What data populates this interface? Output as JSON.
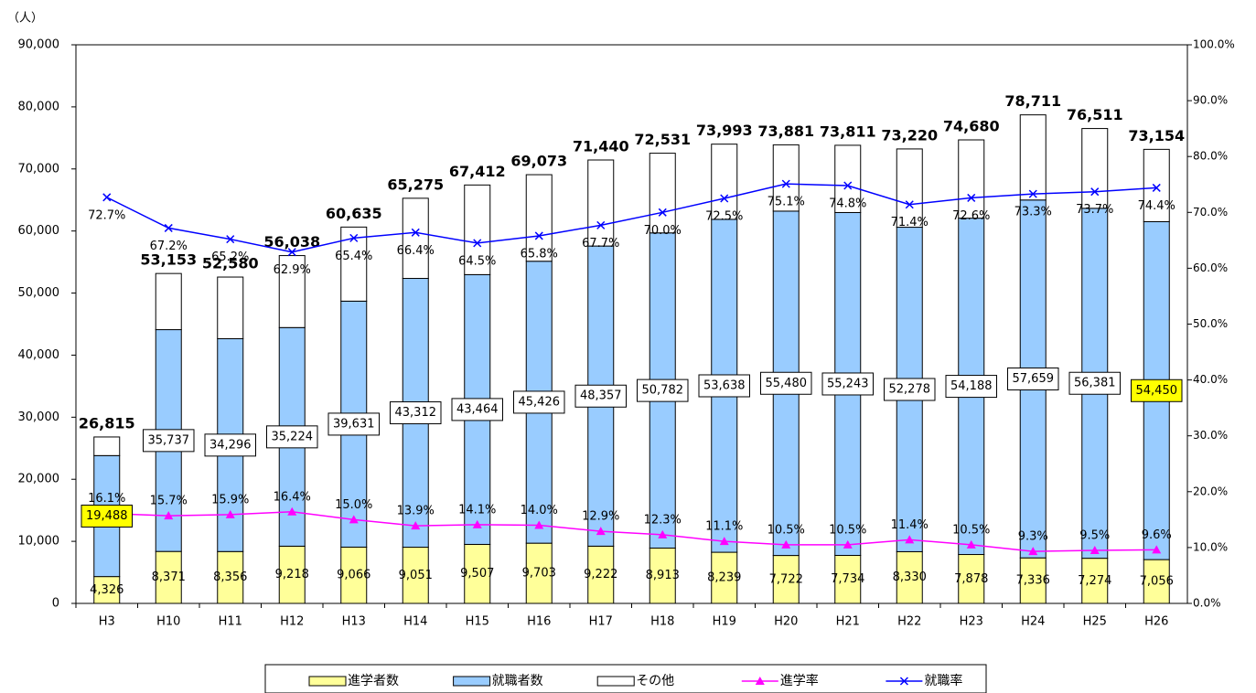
{
  "chart_data": {
    "type": "combo",
    "y_unit_label": "（人）",
    "categories": [
      "H3",
      "H10",
      "H11",
      "H12",
      "H13",
      "H14",
      "H15",
      "H16",
      "H17",
      "H18",
      "H19",
      "H20",
      "H21",
      "H22",
      "H23",
      "H24",
      "H25",
      "H26"
    ],
    "series": [
      {
        "name": "進学者数",
        "type": "bar",
        "color": "#ffff99",
        "values": [
          4326,
          8371,
          8356,
          9218,
          9066,
          9051,
          9507,
          9703,
          9222,
          8913,
          8239,
          7722,
          7734,
          8330,
          7878,
          7336,
          7274,
          7056
        ],
        "value_labels": [
          "4,326",
          "8,371",
          "8,356",
          "9,218",
          "9,066",
          "9,051",
          "9,507",
          "9,703",
          "9,222",
          "8,913",
          "8,239",
          "7,722",
          "7,734",
          "8,330",
          "7,878",
          "7,336",
          "7,274",
          "7,056"
        ]
      },
      {
        "name": "就職者数",
        "type": "bar",
        "color": "#99ccff",
        "values": [
          19488,
          35737,
          34296,
          35224,
          39631,
          43312,
          43464,
          45426,
          48357,
          50782,
          53638,
          55480,
          55243,
          52278,
          54188,
          57659,
          56381,
          54450
        ],
        "value_labels": [
          "19,488",
          "35,737",
          "34,296",
          "35,224",
          "39,631",
          "43,312",
          "43,464",
          "45,426",
          "48,357",
          "50,782",
          "53,638",
          "55,480",
          "55,243",
          "52,278",
          "54,188",
          "57,659",
          "56,381",
          "54,450"
        ]
      },
      {
        "name": "その他",
        "type": "bar",
        "color": "#ffffff",
        "values": [
          3001,
          9045,
          9928,
          11596,
          11938,
          12912,
          14441,
          13944,
          13861,
          12836,
          12116,
          10679,
          10834,
          12612,
          12614,
          13716,
          12856,
          11648
        ]
      },
      {
        "name": "進学率",
        "type": "line",
        "axis": "y2",
        "color": "#ff00ff",
        "marker": "triangle",
        "values": [
          16.1,
          15.7,
          15.9,
          16.4,
          15.0,
          13.9,
          14.1,
          14.0,
          12.9,
          12.3,
          11.1,
          10.5,
          10.5,
          11.4,
          10.5,
          9.3,
          9.5,
          9.6
        ],
        "value_labels": [
          "16.1%",
          "15.7%",
          "15.9%",
          "16.4%",
          "15.0%",
          "13.9%",
          "14.1%",
          "14.0%",
          "12.9%",
          "12.3%",
          "11.1%",
          "10.5%",
          "10.5%",
          "11.4%",
          "10.5%",
          "9.3%",
          "9.5%",
          "9.6%"
        ]
      },
      {
        "name": "就職率",
        "type": "line",
        "axis": "y2",
        "color": "#0000ff",
        "marker": "x",
        "values": [
          72.7,
          67.2,
          65.2,
          62.9,
          65.4,
          66.4,
          64.5,
          65.8,
          67.7,
          70.0,
          72.5,
          75.1,
          74.8,
          71.4,
          72.6,
          73.3,
          73.7,
          74.4
        ],
        "value_labels": [
          "72.7%",
          "67.2%",
          "65.2%",
          "62.9%",
          "65.4%",
          "66.4%",
          "64.5%",
          "65.8%",
          "67.7%",
          "70.0%",
          "72.5%",
          "75.1%",
          "74.8%",
          "71.4%",
          "72.6%",
          "73.3%",
          "73.7%",
          "74.4%"
        ]
      }
    ],
    "totals": [
      26815,
      53153,
      52580,
      56038,
      60635,
      65275,
      67412,
      69073,
      71440,
      72531,
      73993,
      73881,
      73811,
      73220,
      74680,
      78711,
      76511,
      73154
    ],
    "total_labels": [
      "26,815",
      "53,153",
      "52,580",
      "56,038",
      "60,635",
      "65,275",
      "67,412",
      "69,073",
      "71,440",
      "72,531",
      "73,993",
      "73,881",
      "73,811",
      "73,220",
      "74,680",
      "78,711",
      "76,511",
      "73,154"
    ],
    "ylim": [
      0,
      90000
    ],
    "yticks": [
      0,
      {
        "value": 10000,
        "label": "10,000"
      },
      {
        "value": 20000,
        "label": "20,000"
      },
      {
        "value": 30000,
        "label": "30,000"
      },
      {
        "value": 40000,
        "label": "40,000"
      },
      {
        "value": 50000,
        "label": "50,000"
      },
      {
        "value": 60000,
        "label": "60,000"
      },
      {
        "value": 70000,
        "label": "70,000"
      },
      {
        "value": 80000,
        "label": "80,000"
      },
      {
        "value": 90000,
        "label": "90,000"
      }
    ],
    "y2lim": [
      0,
      100
    ],
    "y2ticks": [
      {
        "value": 0,
        "label": "0.0%"
      },
      {
        "value": 10,
        "label": "10.0%"
      },
      {
        "value": 20,
        "label": "20.0%"
      },
      {
        "value": 30,
        "label": "30.0%"
      },
      {
        "value": 40,
        "label": "40.0%"
      },
      {
        "value": 50,
        "label": "50.0%"
      },
      {
        "value": 60,
        "label": "60.0%"
      },
      {
        "value": 70,
        "label": "70.0%"
      },
      {
        "value": 80,
        "label": "80.0%"
      },
      {
        "value": 90,
        "label": "90.0%"
      },
      {
        "value": 100,
        "label": "100.0%"
      }
    ],
    "grid": false,
    "legend": "bottom",
    "highlight_color": "#ffff00"
  }
}
